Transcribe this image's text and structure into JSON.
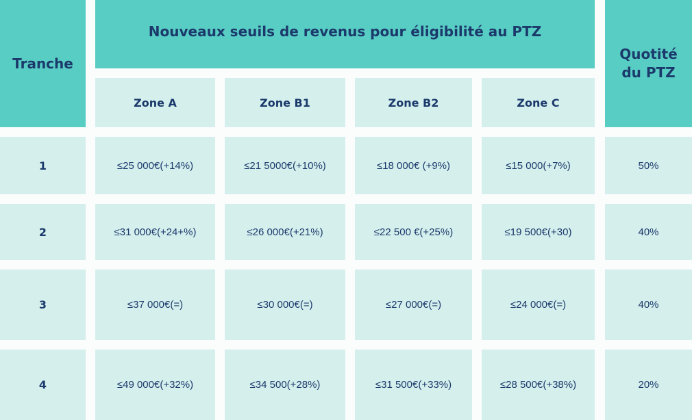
{
  "header": {
    "tranche": "Tranche",
    "title": "Nouveaux seuils de revenus pour éligibilité au PTZ",
    "quotite": "Quotité du PTZ",
    "zones": [
      "Zone A",
      "Zone B1",
      "Zone B2",
      "Zone C"
    ]
  },
  "rows": [
    {
      "tranche": "1",
      "values": [
        "≤25 000€(+14%)",
        "≤21 5000€(+10%)",
        "≤18 000€ (+9%)",
        "≤15 000(+7%)"
      ],
      "quotite": "50%"
    },
    {
      "tranche": "2",
      "values": [
        "≤31 000€(+24+%)",
        "≤26 000€(+21%)",
        "≤22 500 €(+25%)",
        "≤19 500€(+30)"
      ],
      "quotite": "40%"
    },
    {
      "tranche": "3",
      "values": [
        "≤37 000€(=)",
        "≤30 000€(=)",
        "≤27 000€(=)",
        "≤24 000€(=)"
      ],
      "quotite": "40%"
    },
    {
      "tranche": "4",
      "values": [
        "≤49 000€(+32%)",
        "≤34 500(+28%)",
        "≤31 500€(+33%)",
        "≤28 500€(+38%)"
      ],
      "quotite": "20%"
    }
  ],
  "colors": {
    "header": "#58cdc4",
    "cell": "#d5efed",
    "text": "#1b3a6b"
  }
}
